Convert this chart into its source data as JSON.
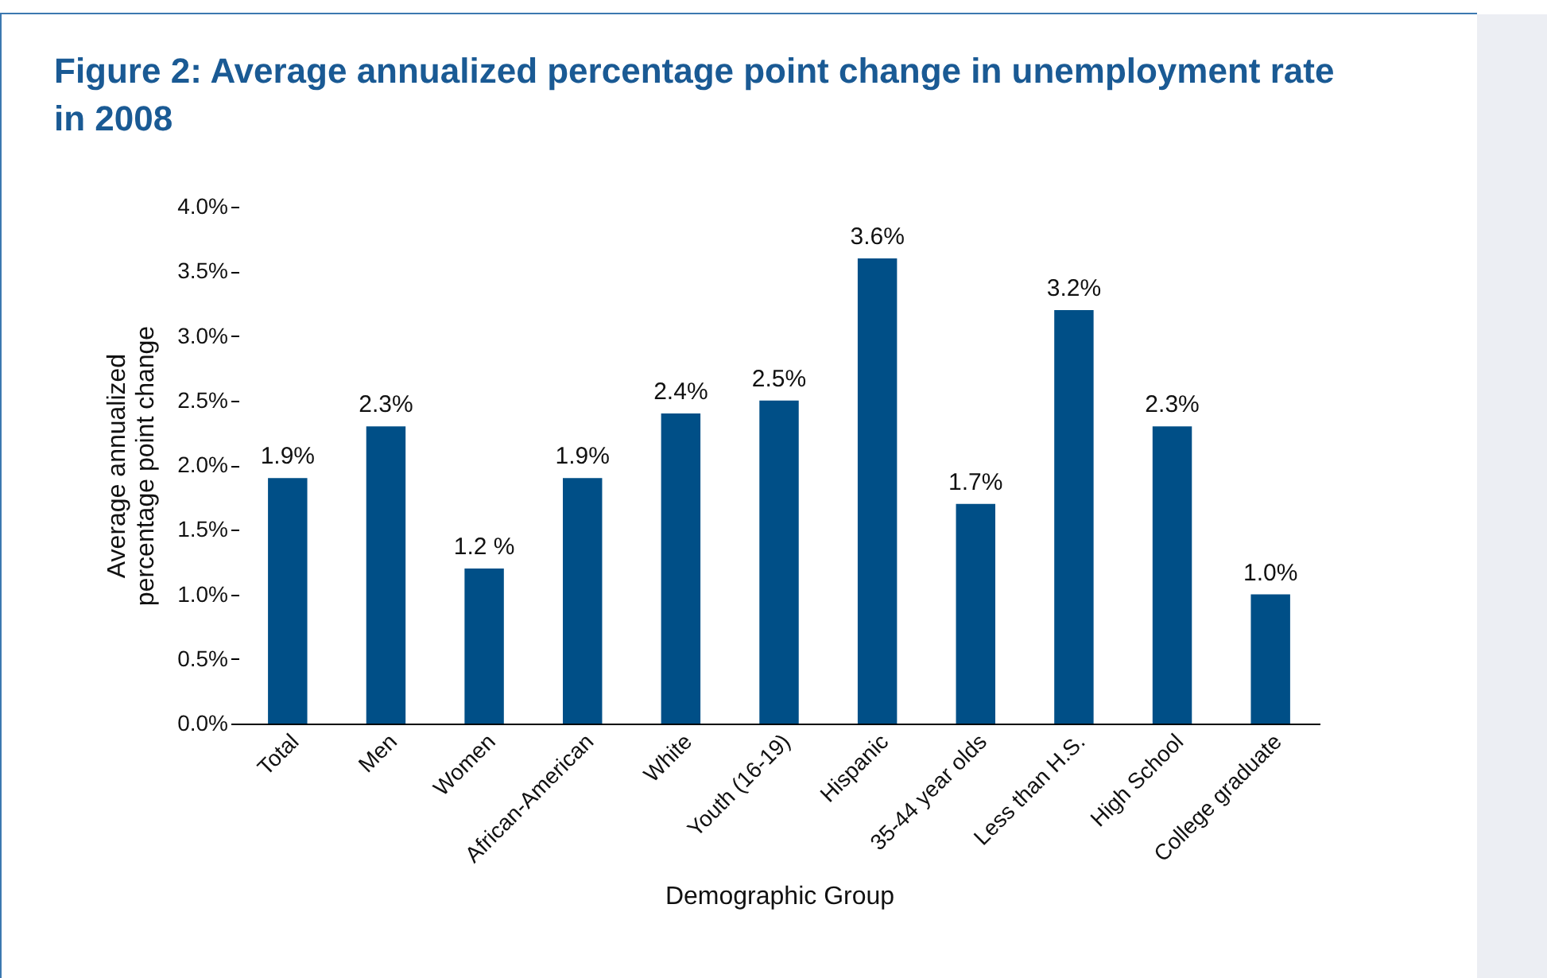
{
  "chart_data": {
    "type": "bar",
    "title": "Figure 2: Average annualized percentage point change in unemployment rate in 2008",
    "xlabel": "Demographic Group",
    "ylabel": "Average annualized percentage point change",
    "categories": [
      "Total",
      "Men",
      "Women",
      "African-American",
      "White",
      "Youth (16-19)",
      "Hispanic",
      "35-44 year olds",
      "Less than H.S.",
      "High School",
      "College graduate"
    ],
    "values": [
      1.9,
      2.3,
      1.2,
      1.9,
      2.4,
      2.5,
      3.6,
      1.7,
      3.2,
      2.3,
      1.0
    ],
    "value_labels": [
      "1.9%",
      "2.3%",
      "1.2 %",
      "1.9%",
      "2.4%",
      "2.5%",
      "3.6%",
      "1.7%",
      "3.2%",
      "2.3%",
      "1.0%"
    ],
    "color": "#004f87",
    "ylim": [
      0,
      4
    ],
    "yticks": [
      {
        "value": 0,
        "label": "0.0%"
      },
      {
        "value": 0.5,
        "label": "0.5%"
      },
      {
        "value": 1,
        "label": "1.0%"
      },
      {
        "value": 1.5,
        "label": "1.5%"
      },
      {
        "value": 2,
        "label": "2.0%"
      },
      {
        "value": 2.5,
        "label": "2.5%"
      },
      {
        "value": 3,
        "label": "3.0%"
      },
      {
        "value": 3.5,
        "label": "3.5%"
      },
      {
        "value": 4,
        "label": "4.0%"
      }
    ]
  }
}
